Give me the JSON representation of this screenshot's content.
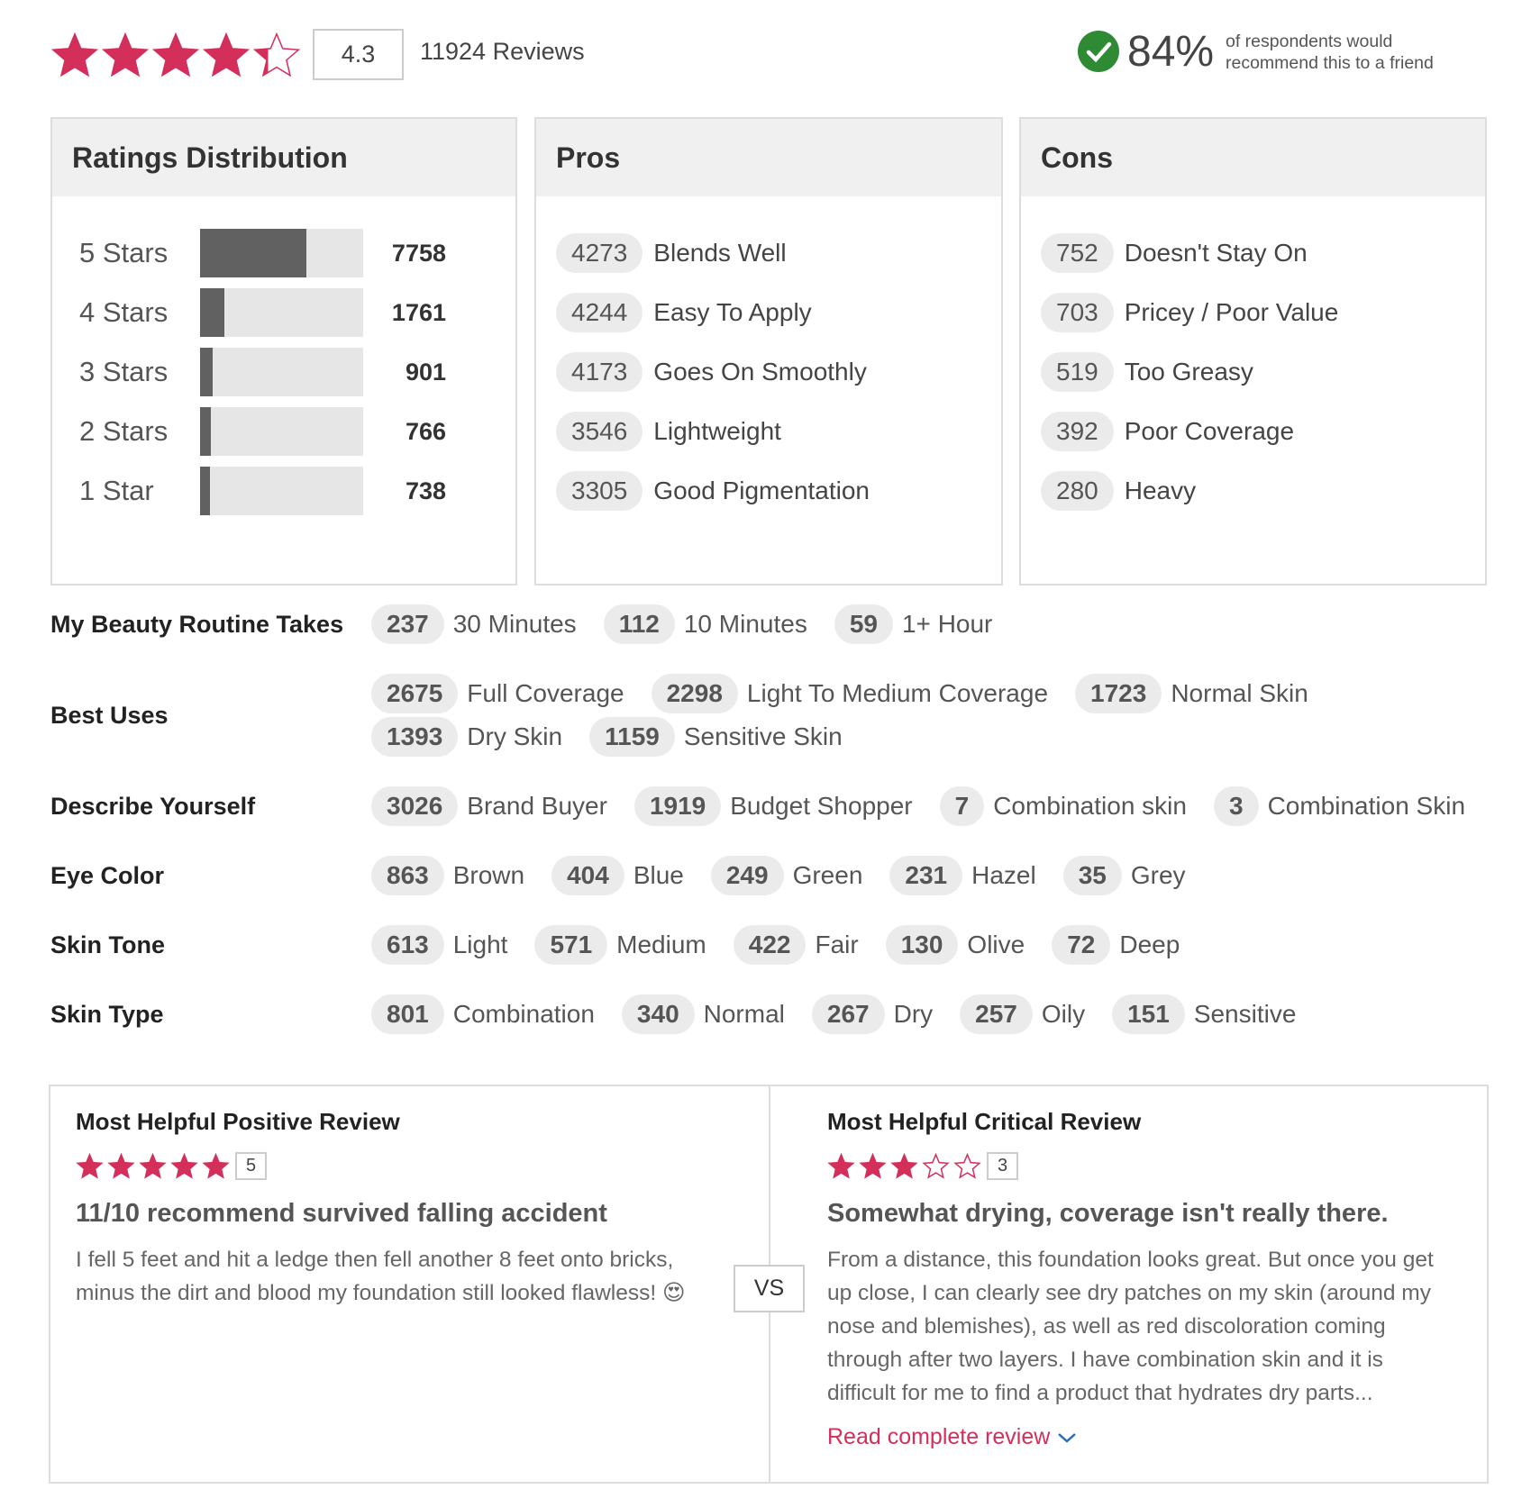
{
  "header": {
    "rating": 4.3,
    "review_count": 11924,
    "review_label": "Reviews",
    "recommend": {
      "value": 84,
      "label": "84%"
    },
    "recommend_text": "of respondents would recommend this to a friend"
  },
  "distribution": {
    "title": "Ratings Distribution",
    "rows": [
      {
        "label": "5 Stars",
        "count": 7758
      },
      {
        "label": "4 Stars",
        "count": 1761
      },
      {
        "label": "3 Stars",
        "count": 901
      },
      {
        "label": "2 Stars",
        "count": 766
      },
      {
        "label": "1 Star",
        "count": 738
      }
    ]
  },
  "pros": {
    "title": "Pros",
    "items": [
      {
        "count": 4273,
        "label": "Blends Well"
      },
      {
        "count": 4244,
        "label": "Easy To Apply"
      },
      {
        "count": 4173,
        "label": "Goes On Smoothly"
      },
      {
        "count": 3546,
        "label": "Lightweight"
      },
      {
        "count": 3305,
        "label": "Good Pigmentation"
      }
    ]
  },
  "cons": {
    "title": "Cons",
    "items": [
      {
        "count": 752,
        "label": "Doesn't Stay On"
      },
      {
        "count": 703,
        "label": "Pricey / Poor Value"
      },
      {
        "count": 519,
        "label": "Too Greasy"
      },
      {
        "count": 392,
        "label": "Poor Coverage"
      },
      {
        "count": 280,
        "label": "Heavy"
      }
    ]
  },
  "attributes": [
    {
      "title": "My Beauty Routine Takes",
      "items": [
        {
          "count": 237,
          "label": "30 Minutes"
        },
        {
          "count": 112,
          "label": "10 Minutes"
        },
        {
          "count": 59,
          "label": "1+ Hour"
        }
      ]
    },
    {
      "title": "Best Uses",
      "items": [
        {
          "count": 2675,
          "label": "Full Coverage"
        },
        {
          "count": 2298,
          "label": "Light To Medium Coverage"
        },
        {
          "count": 1723,
          "label": "Normal Skin"
        },
        {
          "count": 1393,
          "label": "Dry Skin"
        },
        {
          "count": 1159,
          "label": "Sensitive Skin"
        }
      ]
    },
    {
      "title": "Describe Yourself",
      "items": [
        {
          "count": 3026,
          "label": "Brand Buyer"
        },
        {
          "count": 1919,
          "label": "Budget Shopper"
        },
        {
          "count": 7,
          "label": "Combination skin"
        },
        {
          "count": 3,
          "label": "Combination Skin"
        }
      ]
    },
    {
      "title": "Eye Color",
      "items": [
        {
          "count": 863,
          "label": "Brown"
        },
        {
          "count": 404,
          "label": "Blue"
        },
        {
          "count": 249,
          "label": "Green"
        },
        {
          "count": 231,
          "label": "Hazel"
        },
        {
          "count": 35,
          "label": "Grey"
        }
      ]
    },
    {
      "title": "Skin Tone",
      "items": [
        {
          "count": 613,
          "label": "Light"
        },
        {
          "count": 571,
          "label": "Medium"
        },
        {
          "count": 422,
          "label": "Fair"
        },
        {
          "count": 130,
          "label": "Olive"
        },
        {
          "count": 72,
          "label": "Deep"
        }
      ]
    },
    {
      "title": "Skin Type",
      "items": [
        {
          "count": 801,
          "label": "Combination"
        },
        {
          "count": 340,
          "label": "Normal"
        },
        {
          "count": 267,
          "label": "Dry"
        },
        {
          "count": 257,
          "label": "Oily"
        },
        {
          "count": 151,
          "label": "Sensitive"
        }
      ]
    }
  ],
  "reviews": {
    "positive": {
      "heading": "Most Helpful Positive Review",
      "rating": 5,
      "title": "11/10 recommend survived falling accident",
      "body": "I fell 5 feet and hit a ledge then fell another 8 feet onto bricks, minus the dirt and blood my foundation still looked flawless! 😍"
    },
    "vs": "VS",
    "critical": {
      "heading": "Most Helpful Critical Review",
      "rating": 3,
      "title": "Somewhat drying, coverage isn't really there.",
      "body": "From a distance, this foundation looks great. But once you get up close, I can clearly see dry patches on my skin (around my nose and blemishes), as well as red discoloration coming through after two layers. I have combination skin and it is difficult for me to find a product that hydrates dry parts...",
      "link": "Read complete review"
    }
  }
}
